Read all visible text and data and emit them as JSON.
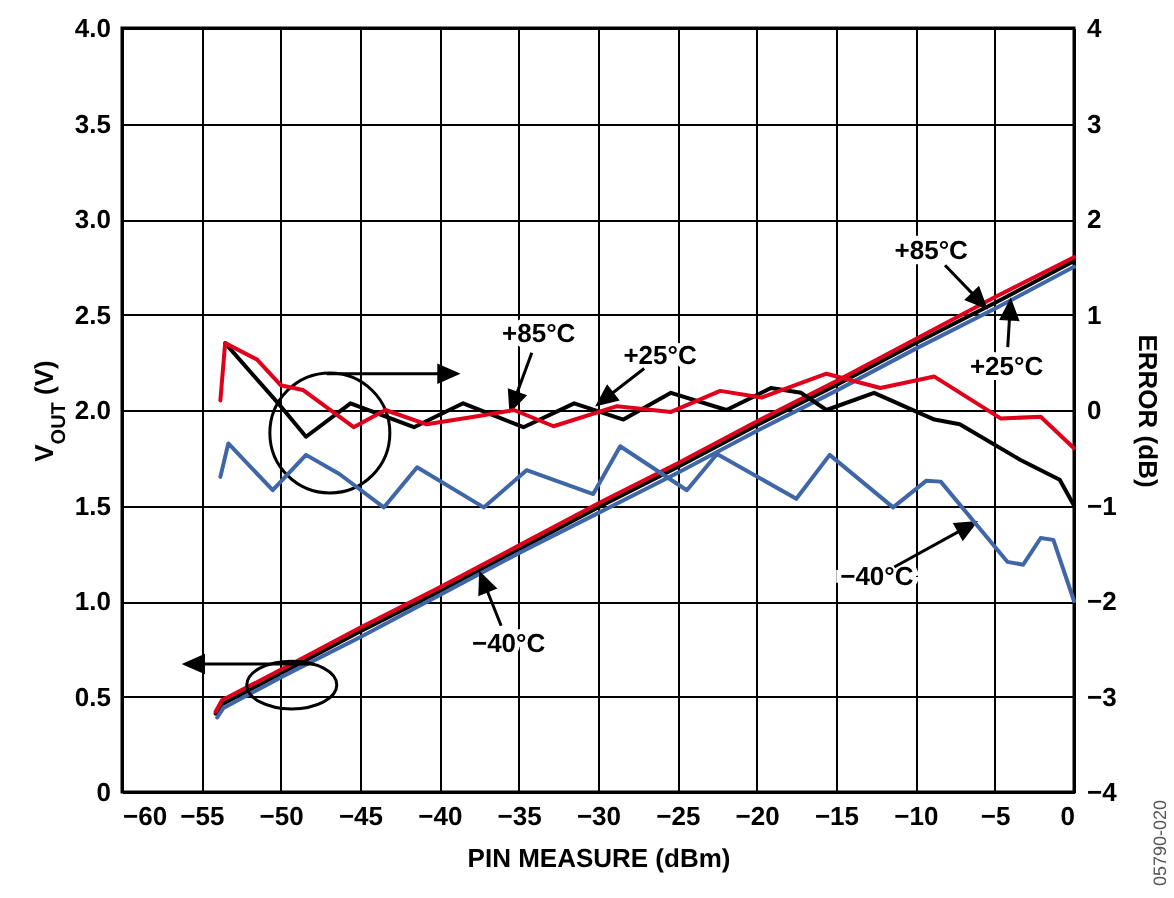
{
  "chart_data": {
    "type": "line",
    "xlabel": "PIN MEASURE (dBm)",
    "ylabel": "V$_{OUT}$ (V)",
    "y2label": "ERROR (dB)",
    "xlim": [
      -60,
      0
    ],
    "xticks": [
      {
        "value": -60,
        "label": "−60"
      },
      {
        "value": -55,
        "label": "−55"
      },
      {
        "value": -50,
        "label": "−50"
      },
      {
        "value": -45,
        "label": "−45"
      },
      {
        "value": -40,
        "label": "−40"
      },
      {
        "value": -35,
        "label": "−35"
      },
      {
        "value": -30,
        "label": "−30"
      },
      {
        "value": -25,
        "label": "−25"
      },
      {
        "value": -20,
        "label": "−20"
      },
      {
        "value": -15,
        "label": "−15"
      },
      {
        "value": -10,
        "label": "−10"
      },
      {
        "value": -5,
        "label": "−5"
      },
      0
    ],
    "ylim": [
      0,
      4
    ],
    "yticks": [
      0,
      0.5,
      {
        "value": 1,
        "label": "1.0"
      },
      1.5,
      {
        "value": 2,
        "label": "2.0"
      },
      2.5,
      {
        "value": 3,
        "label": "3.0"
      },
      3.5,
      {
        "value": 4,
        "label": "4.0"
      }
    ],
    "y2lim": [
      -4,
      4
    ],
    "y2ticks": [
      {
        "value": -4,
        "label": "−4"
      },
      {
        "value": -3,
        "label": "−3"
      },
      {
        "value": -2,
        "label": "−2"
      },
      {
        "value": -1,
        "label": "−1"
      },
      0,
      1,
      2,
      3,
      4
    ],
    "grid": true,
    "series": [
      {
        "color": "#000000",
        "x": [
          -54.1,
          -53.7,
          -50,
          -45,
          -40,
          -35,
          -30,
          -25,
          -20,
          -15,
          -10,
          -5,
          0
        ],
        "values": [
          0.41,
          0.46,
          0.62,
          0.84,
          1.05,
          1.27,
          1.49,
          1.7,
          1.92,
          2.13,
          2.35,
          2.56,
          2.78
        ]
      },
      {
        "color": "#e0001b",
        "x": [
          -54.1,
          -53.7,
          -50,
          -45,
          -40,
          -35,
          -30,
          -25,
          -20,
          -15,
          -10,
          -5,
          0
        ],
        "values": [
          0.42,
          0.48,
          0.64,
          0.86,
          1.07,
          1.29,
          1.51,
          1.72,
          1.94,
          2.15,
          2.37,
          2.59,
          2.8
        ]
      },
      {
        "color": "#3f67a8",
        "x": [
          -54,
          -53.6,
          -50,
          -45,
          -40,
          -35,
          -30,
          -25,
          -20,
          -15,
          -10,
          -5,
          0
        ],
        "values": [
          0.39,
          0.44,
          0.6,
          0.81,
          1.03,
          1.25,
          1.46,
          1.67,
          1.89,
          2.1,
          2.32,
          2.53,
          2.75
        ]
      },
      {
        "color": "#000000",
        "axis": "y2",
        "x": [
          -53.5,
          -50,
          -48.4,
          -45.6,
          -41.6,
          -38.5,
          -34.7,
          -31.5,
          -28.4,
          -25.4,
          -21.9,
          -19.1,
          -17.2,
          -15.6,
          -12.6,
          -8.8,
          -7.2,
          -3.4,
          -0.9,
          0
        ],
        "values": [
          0.7,
          0.04,
          -0.28,
          0.07,
          -0.18,
          0.07,
          -0.18,
          0.07,
          -0.1,
          0.18,
          0,
          0.23,
          0.18,
          0,
          0.18,
          -0.1,
          -0.15,
          -0.52,
          -0.73,
          -1
        ]
      },
      {
        "color": "#e0001b",
        "axis": "y2",
        "x": [
          -53.8,
          -53.5,
          -51.5,
          -50,
          -48.6,
          -45.4,
          -43.4,
          -40.8,
          -37.8,
          -35.3,
          -32.8,
          -28.8,
          -25.4,
          -22.3,
          -19.7,
          -15.6,
          -12.2,
          -8.8,
          -4.6,
          -2.1,
          0
        ],
        "values": [
          0.1,
          0.7,
          0.53,
          0.26,
          0.21,
          -0.18,
          0,
          -0.15,
          -0.07,
          0,
          -0.17,
          0.04,
          -0.02,
          0.2,
          0.13,
          0.38,
          0.23,
          0.35,
          -0.09,
          -0.07,
          -0.4
        ]
      },
      {
        "color": "#3f67a8",
        "axis": "y2",
        "x": [
          -53.8,
          -53.3,
          -50.5,
          -48.4,
          -46.3,
          -43.5,
          -41.4,
          -37.2,
          -34.5,
          -30.3,
          -28.6,
          -24.4,
          -22.5,
          -17.5,
          -15.4,
          -11.4,
          -9.3,
          -8.4,
          -4.2,
          -3.2,
          -2.1,
          -1.3,
          0
        ],
        "values": [
          -0.7,
          -0.35,
          -0.84,
          -0.47,
          -0.67,
          -1.02,
          -0.6,
          -1.02,
          -0.63,
          -0.88,
          -0.38,
          -0.84,
          -0.46,
          -0.93,
          -0.47,
          -1.02,
          -0.74,
          -0.75,
          -1.59,
          -1.62,
          -1.34,
          -1.36,
          -2
        ]
      }
    ],
    "annotations": [
      {
        "text": "+85°C",
        "x": -35.5,
        "y": 2.0
      },
      {
        "text": "+25°C",
        "x": -30,
        "y": 2.03
      },
      {
        "text": "−40°C",
        "x": -37.4,
        "y": 1.14
      },
      {
        "text": "+85°C",
        "x": -5.6,
        "y": 2.54
      },
      {
        "text": "+25°C",
        "x": -4.0,
        "y": 2.57
      },
      {
        "text": "−40°C",
        "x": -6.25,
        "y": 1.41
      },
      "05790-020"
    ]
  }
}
